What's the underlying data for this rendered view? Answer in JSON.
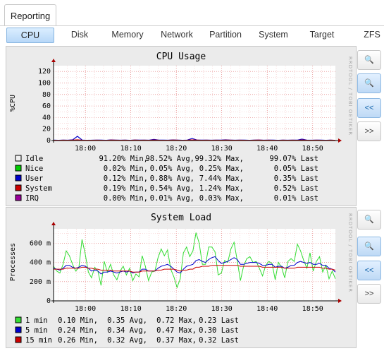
{
  "app": {
    "tab_label": "Reporting"
  },
  "subtabs": [
    {
      "label": "CPU",
      "active": true
    },
    {
      "label": "Disk"
    },
    {
      "label": "Memory"
    },
    {
      "label": "Network"
    },
    {
      "label": "Partition"
    },
    {
      "label": "System"
    },
    {
      "label": "Target"
    },
    {
      "label": "ZFS"
    }
  ],
  "controls": {
    "zoom_in": "+",
    "zoom_out": "−",
    "back": "<<",
    "forward": ">>"
  },
  "watermark": "RRDTOOL / TOBI OETIKER",
  "charts": [
    {
      "title": "CPU Usage",
      "ylabel": "%CPU",
      "x_ticks": [
        "18:00",
        "18:10",
        "18:20",
        "18:30",
        "18:40",
        "18:50"
      ],
      "y_ticks": [
        "0",
        "20",
        "40",
        "60",
        "80",
        "100",
        "120"
      ],
      "legend": [
        {
          "label": "Idle",
          "color": "#f0f0f0",
          "min": "91.20% Min,",
          "avg": "98.52% Avg,",
          "max": "99.32% Max,",
          "last": "99.07% Last"
        },
        {
          "label": "Nice",
          "color": "#00cc00",
          "min": "0.02% Min,",
          "avg": "0.05% Avg,",
          "max": "0.25% Max,",
          "last": "0.05% Last"
        },
        {
          "label": "User",
          "color": "#0000cc",
          "min": "0.12% Min,",
          "avg": "0.88% Avg,",
          "max": "7.44% Max,",
          "last": "0.35% Last"
        },
        {
          "label": "System",
          "color": "#cc0000",
          "min": "0.19% Min,",
          "avg": "0.54% Avg,",
          "max": "1.24% Max,",
          "last": "0.52% Last"
        },
        {
          "label": "IRQ",
          "color": "#990099",
          "min": "0.00% Min,",
          "avg": "0.01% Avg,",
          "max": "0.03% Max,",
          "last": "0.01% Last"
        }
      ]
    },
    {
      "title": "System Load",
      "ylabel": "Processes",
      "x_ticks": [
        "18:00",
        "18:10",
        "18:20",
        "18:30",
        "18:40",
        "18:50"
      ],
      "y_ticks": [
        "0",
        "200 m",
        "400 m",
        "600 m"
      ],
      "legend": [
        {
          "label": "1 min",
          "color": "#33dd33",
          "min": "0.10 Min,",
          "avg": "0.35 Avg,",
          "max": "0.72 Max,",
          "last": "0.23 Last"
        },
        {
          "label": "5 min",
          "color": "#0000cc",
          "min": "0.24 Min,",
          "avg": "0.34 Avg,",
          "max": "0.47 Max,",
          "last": "0.30 Last"
        },
        {
          "label": "15 min",
          "color": "#cc0000",
          "min": "0.26 Min,",
          "avg": "0.32 Avg,",
          "max": "0.37 Max,",
          "last": "0.32 Last"
        }
      ]
    }
  ],
  "chart_data": [
    {
      "type": "area",
      "title": "CPU Usage",
      "ylabel": "%CPU",
      "xlabel": "",
      "ylim": [
        0,
        130
      ],
      "x_range": [
        "17:53",
        "18:55"
      ],
      "series": [
        {
          "name": "User",
          "values": [
            0.8,
            0.5,
            0.9,
            0.6,
            1.2,
            7.4,
            0.7,
            0.5,
            0.6,
            0.9,
            0.7,
            0.5,
            1.1,
            0.8,
            0.6,
            0.9,
            0.5,
            1.0,
            0.7,
            0.8,
            0.6,
            2.0,
            0.9,
            0.7,
            0.6,
            1.1,
            0.8,
            0.5,
            0.9,
            3.5,
            1.0,
            0.7,
            0.8,
            0.6,
            0.9,
            0.7,
            1.2,
            0.8,
            0.6,
            0.9,
            0.7,
            0.5,
            0.8,
            1.0,
            0.6,
            0.9,
            0.7,
            0.5,
            0.8,
            0.6,
            0.9,
            0.7,
            2.5,
            0.8,
            0.6,
            0.9,
            0.7,
            0.5,
            0.8,
            0.4
          ]
        },
        {
          "name": "System",
          "values": [
            0.5,
            0.4,
            0.6,
            0.5,
            0.7,
            1.2,
            0.6,
            0.5,
            0.5,
            0.6,
            0.5,
            0.4,
            0.7,
            0.6,
            0.5,
            0.6,
            0.4,
            0.7,
            0.5,
            0.6,
            0.5,
            1.0,
            0.6,
            0.5,
            0.5,
            0.7,
            0.6,
            0.4,
            0.6,
            1.1,
            0.7,
            0.5,
            0.6,
            0.5,
            0.6,
            0.5,
            0.8,
            0.6,
            0.5,
            0.6,
            0.5,
            0.4,
            0.6,
            0.7,
            0.5,
            0.6,
            0.5,
            0.4,
            0.6,
            0.5,
            0.6,
            0.5,
            1.0,
            0.6,
            0.5,
            0.6,
            0.5,
            0.4,
            0.6,
            0.5
          ]
        }
      ]
    },
    {
      "type": "line",
      "title": "System Load",
      "ylabel": "Processes",
      "xlabel": "",
      "ylim": [
        0,
        0.75
      ],
      "x_range": [
        "17:53",
        "18:55"
      ],
      "series": [
        {
          "name": "1 min",
          "values": [
            0.36,
            0.31,
            0.29,
            0.38,
            0.52,
            0.47,
            0.38,
            0.31,
            0.35,
            0.64,
            0.49,
            0.3,
            0.24,
            0.35,
            0.31,
            0.16,
            0.41,
            0.3,
            0.38,
            0.27,
            0.22,
            0.31,
            0.36,
            0.27,
            0.34,
            0.21,
            0.28,
            0.25,
            0.47,
            0.36,
            0.21,
            0.3,
            0.31,
            0.45,
            0.54,
            0.47,
            0.53,
            0.33,
            0.25,
            0.14,
            0.23,
            0.5,
            0.56,
            0.46,
            0.52,
            0.71,
            0.6,
            0.38,
            0.38,
            0.56,
            0.56,
            0.51,
            0.27,
            0.29,
            0.42,
            0.4,
            0.54,
            0.61,
            0.42,
            0.21,
            0.36,
            0.44,
            0.46,
            0.4,
            0.41,
            0.34,
            0.26,
            0.37,
            0.41,
            0.39,
            0.22,
            0.4,
            0.35,
            0.24,
            0.41,
            0.44,
            0.41,
            0.59,
            0.52,
            0.42,
            0.34,
            0.5,
            0.31,
            0.41,
            0.46,
            0.3,
            0.37,
            0.23,
            0.31,
            0.23
          ]
        },
        {
          "name": "5 min",
          "values": [
            0.34,
            0.33,
            0.32,
            0.34,
            0.37,
            0.37,
            0.35,
            0.34,
            0.35,
            0.37,
            0.36,
            0.34,
            0.31,
            0.32,
            0.31,
            0.28,
            0.3,
            0.3,
            0.31,
            0.3,
            0.29,
            0.3,
            0.31,
            0.3,
            0.31,
            0.29,
            0.3,
            0.3,
            0.33,
            0.33,
            0.31,
            0.31,
            0.31,
            0.34,
            0.36,
            0.37,
            0.38,
            0.36,
            0.33,
            0.3,
            0.29,
            0.33,
            0.36,
            0.37,
            0.38,
            0.42,
            0.43,
            0.41,
            0.4,
            0.43,
            0.45,
            0.46,
            0.42,
            0.39,
            0.4,
            0.41,
            0.43,
            0.45,
            0.43,
            0.38,
            0.38,
            0.39,
            0.4,
            0.4,
            0.4,
            0.39,
            0.37,
            0.37,
            0.38,
            0.38,
            0.35,
            0.36,
            0.36,
            0.34,
            0.35,
            0.37,
            0.37,
            0.4,
            0.41,
            0.4,
            0.39,
            0.4,
            0.38,
            0.38,
            0.39,
            0.37,
            0.37,
            0.34,
            0.33,
            0.3
          ]
        },
        {
          "name": "15 min",
          "values": [
            0.33,
            0.33,
            0.33,
            0.33,
            0.34,
            0.34,
            0.34,
            0.34,
            0.34,
            0.35,
            0.35,
            0.34,
            0.34,
            0.33,
            0.33,
            0.32,
            0.32,
            0.32,
            0.32,
            0.31,
            0.31,
            0.31,
            0.31,
            0.31,
            0.31,
            0.3,
            0.3,
            0.3,
            0.31,
            0.31,
            0.31,
            0.31,
            0.31,
            0.32,
            0.32,
            0.33,
            0.33,
            0.33,
            0.33,
            0.32,
            0.31,
            0.32,
            0.32,
            0.33,
            0.33,
            0.35,
            0.35,
            0.36,
            0.36,
            0.36,
            0.37,
            0.37,
            0.37,
            0.37,
            0.37,
            0.37,
            0.37,
            0.37,
            0.37,
            0.36,
            0.36,
            0.36,
            0.36,
            0.36,
            0.36,
            0.36,
            0.35,
            0.35,
            0.35,
            0.35,
            0.35,
            0.35,
            0.35,
            0.34,
            0.34,
            0.34,
            0.34,
            0.35,
            0.35,
            0.35,
            0.35,
            0.35,
            0.35,
            0.35,
            0.35,
            0.34,
            0.34,
            0.33,
            0.33,
            0.32
          ]
        }
      ]
    }
  ]
}
